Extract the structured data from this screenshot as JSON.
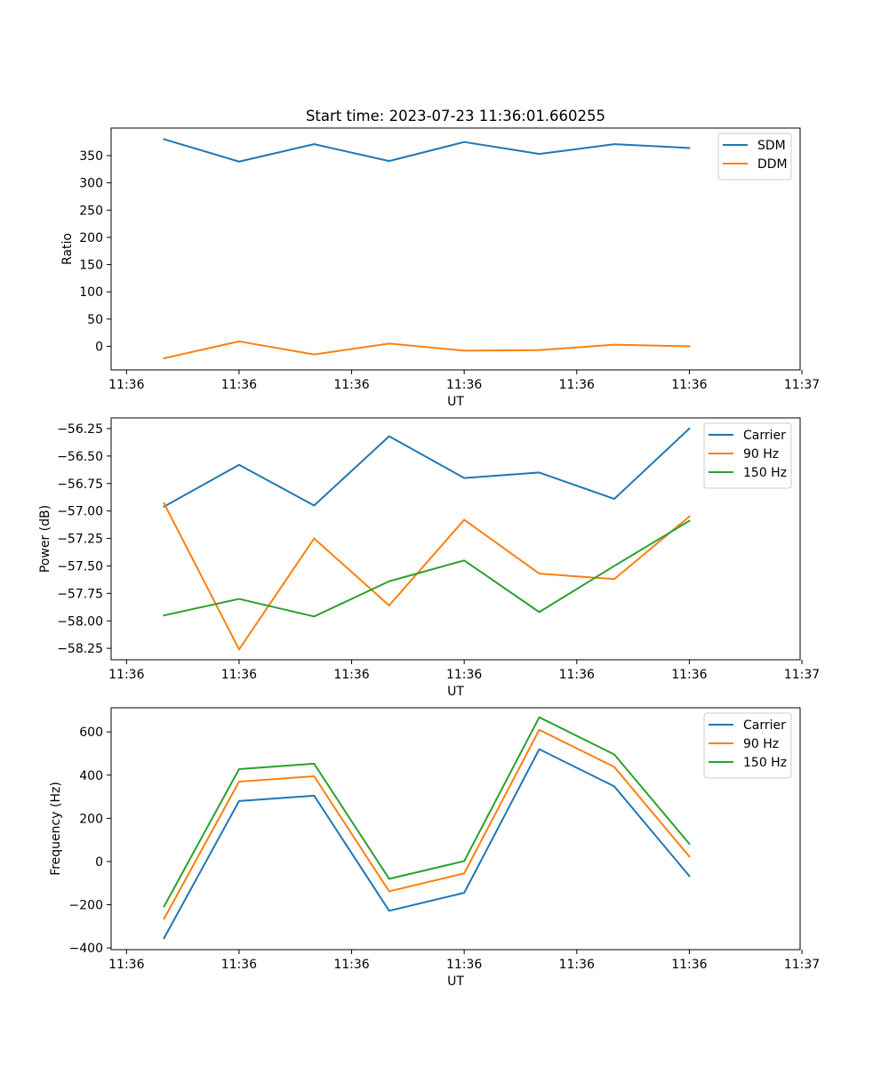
{
  "figure_title": "Start time: 2023-07-23 11:36:01.660255",
  "colors": {
    "blue": "#1f77b4",
    "orange": "#ff7f0e",
    "green": "#2ca02c"
  },
  "chart_data": [
    {
      "type": "line",
      "title": "Start time: 2023-07-23 11:36:01.660255",
      "xlabel": "UT",
      "ylabel": "Ratio",
      "x": [
        1,
        2,
        3,
        4,
        5,
        6,
        7,
        8
      ],
      "xlim": [
        0.295,
        9.476
      ],
      "xticks": [
        0.5,
        2,
        3.5,
        5,
        6.5,
        8,
        9.5
      ],
      "xtick_labels": [
        "11:36",
        "11:36",
        "11:36",
        "11:36",
        "11:36",
        "11:36",
        "11:37"
      ],
      "ylim": [
        -43.3,
        400.6
      ],
      "yticks": [
        0,
        50,
        100,
        150,
        200,
        250,
        300,
        350
      ],
      "ytick_labels": [
        "0",
        "50",
        "100",
        "150",
        "200",
        "250",
        "300",
        "350"
      ],
      "legend": "top-right",
      "series": [
        {
          "name": "SDM",
          "color": "#1f77b4",
          "values": [
            380,
            339,
            371,
            340,
            375,
            353,
            371,
            364
          ]
        },
        {
          "name": "DDM",
          "color": "#ff7f0e",
          "values": [
            -22,
            9,
            -15,
            5,
            -8,
            -7,
            3,
            0
          ]
        }
      ]
    },
    {
      "type": "line",
      "title": "",
      "xlabel": "UT",
      "ylabel": "Power (dB)",
      "x": [
        1,
        2,
        3,
        4,
        5,
        6,
        7,
        8
      ],
      "xlim": [
        0.295,
        9.476
      ],
      "xticks": [
        0.5,
        2,
        3.5,
        5,
        6.5,
        8,
        9.5
      ],
      "xtick_labels": [
        "11:36",
        "11:36",
        "11:36",
        "11:36",
        "11:36",
        "11:36",
        "11:37"
      ],
      "ylim": [
        -58.354,
        -56.153
      ],
      "yticks": [
        -58.25,
        -58.0,
        -57.75,
        -57.5,
        -57.25,
        -57.0,
        -56.75,
        -56.5,
        -56.25
      ],
      "ytick_labels": [
        "−58.25",
        "−58.00",
        "−57.75",
        "−57.50",
        "−57.25",
        "−57.00",
        "−56.75",
        "−56.50",
        "−56.25"
      ],
      "legend": "top-right",
      "series": [
        {
          "name": "Carrier",
          "color": "#1f77b4",
          "values": [
            -56.96,
            -56.58,
            -56.95,
            -56.32,
            -56.7,
            -56.65,
            -56.89,
            -56.25
          ]
        },
        {
          "name": "90 Hz",
          "color": "#ff7f0e",
          "values": [
            -56.93,
            -58.26,
            -57.25,
            -57.86,
            -57.08,
            -57.57,
            -57.62,
            -57.05
          ]
        },
        {
          "name": "150 Hz",
          "color": "#2ca02c",
          "values": [
            -57.95,
            -57.8,
            -57.96,
            -57.64,
            -57.45,
            -57.92,
            -57.5,
            -57.09
          ]
        }
      ]
    },
    {
      "type": "line",
      "title": "",
      "xlabel": "UT",
      "ylabel": "Frequency (Hz)",
      "x": [
        1,
        2,
        3,
        4,
        5,
        6,
        7,
        8
      ],
      "xlim": [
        0.295,
        9.476
      ],
      "xticks": [
        0.5,
        2,
        3.5,
        5,
        6.5,
        8,
        9.5
      ],
      "xtick_labels": [
        "11:36",
        "11:36",
        "11:36",
        "11:36",
        "11:36",
        "11:36",
        "11:37"
      ],
      "ylim": [
        -408,
        712
      ],
      "yticks": [
        -400,
        -200,
        0,
        200,
        400,
        600
      ],
      "ytick_labels": [
        "−400",
        "−200",
        "0",
        "200",
        "400",
        "600"
      ],
      "legend": "top-right",
      "series": [
        {
          "name": "Carrier",
          "color": "#1f77b4",
          "values": [
            -355,
            280,
            305,
            -228,
            -145,
            520,
            348,
            -67
          ]
        },
        {
          "name": "90 Hz",
          "color": "#ff7f0e",
          "values": [
            -265,
            370,
            395,
            -138,
            -55,
            610,
            438,
            23
          ]
        },
        {
          "name": "150 Hz",
          "color": "#2ca02c",
          "values": [
            -208,
            428,
            453,
            -80,
            2,
            668,
            496,
            82
          ]
        }
      ]
    }
  ]
}
